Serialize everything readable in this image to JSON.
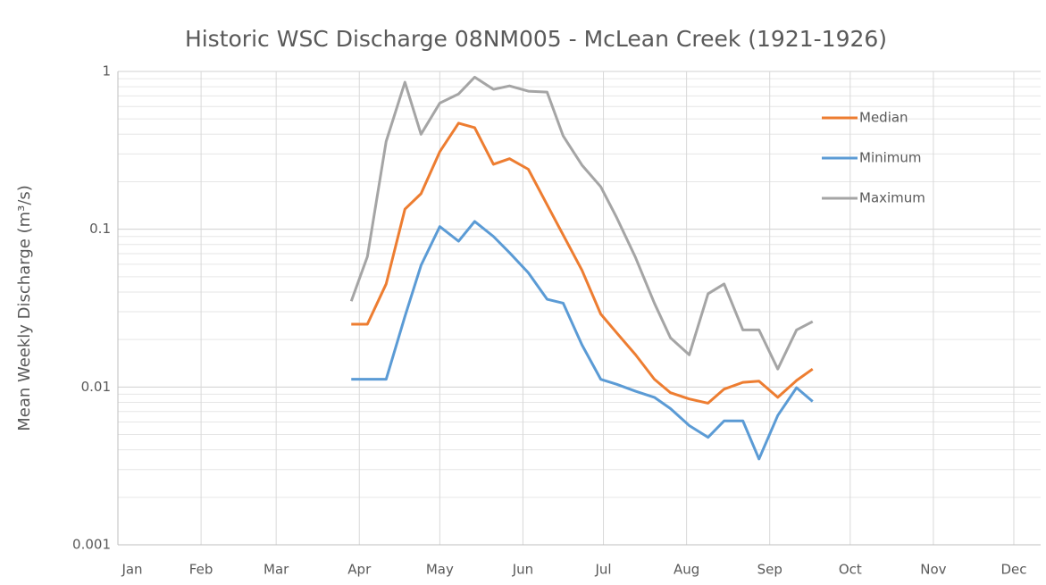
{
  "chart_data": {
    "type": "line",
    "title": "Historic WSC Discharge 08NM005 - McLean Creek  (1921-1926)",
    "y_label": "Mean Weekly Discharge (m³/s)",
    "x": [
      88,
      94,
      101,
      108,
      114,
      121,
      128,
      134,
      141,
      147,
      154,
      161,
      167,
      174,
      181,
      187,
      194,
      201,
      207,
      214,
      221,
      227,
      234,
      240,
      247,
      254,
      260
    ],
    "series": [
      {
        "name": "Median",
        "color": "#ED7D31",
        "values": [
          0.025,
          0.025,
          0.045,
          0.134,
          0.168,
          0.31,
          0.47,
          0.44,
          0.258,
          0.28,
          0.24,
          0.143,
          0.092,
          0.055,
          0.029,
          0.022,
          0.016,
          0.0112,
          0.0092,
          0.0084,
          0.0079,
          0.0097,
          0.0107,
          0.0109,
          0.0086,
          0.011,
          0.013
        ]
      },
      {
        "name": "Minimum",
        "color": "#5B9BD5",
        "values": [
          0.0112,
          0.0112,
          0.0112,
          0.028,
          0.059,
          0.104,
          0.084,
          0.112,
          0.09,
          0.071,
          0.053,
          0.036,
          0.034,
          0.0185,
          0.0112,
          0.0104,
          0.0094,
          0.0086,
          0.0073,
          0.0057,
          0.0048,
          0.0061,
          0.0061,
          0.0035,
          0.0066,
          0.0099,
          0.0081
        ]
      },
      {
        "name": "Maximum",
        "color": "#A5A5A5",
        "values": [
          0.035,
          0.067,
          0.36,
          0.855,
          0.4,
          0.63,
          0.72,
          0.92,
          0.77,
          0.81,
          0.75,
          0.74,
          0.39,
          0.255,
          0.186,
          0.118,
          0.066,
          0.034,
          0.0205,
          0.016,
          0.039,
          0.045,
          0.023,
          0.023,
          0.013,
          0.023,
          0.026
        ]
      }
    ],
    "xlim": [
      1,
      345
    ],
    "xticks": [
      {
        "value": 1,
        "label": "Jan"
      },
      {
        "value": 32,
        "label": "Feb"
      },
      {
        "value": 60,
        "label": "Mar"
      },
      {
        "value": 91,
        "label": "Apr"
      },
      {
        "value": 121,
        "label": "May"
      },
      {
        "value": 152,
        "label": "Jun"
      },
      {
        "value": 182,
        "label": "Jul"
      },
      {
        "value": 213,
        "label": "Aug"
      },
      {
        "value": 244,
        "label": "Sep"
      },
      {
        "value": 274,
        "label": "Oct"
      },
      {
        "value": 305,
        "label": "Nov"
      },
      {
        "value": 335,
        "label": "Dec"
      }
    ],
    "ylim": [
      0.001,
      1
    ],
    "yticks": [
      0.001,
      0.01,
      0.1,
      1
    ],
    "log_y": true,
    "grid": true,
    "legend": "upper right"
  }
}
